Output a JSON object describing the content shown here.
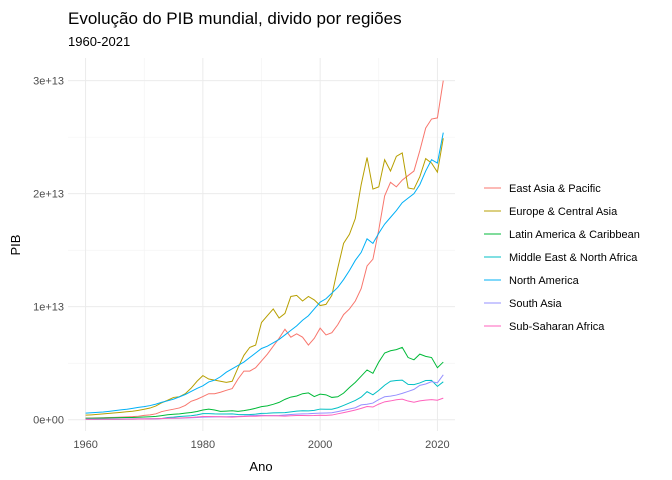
{
  "chart_data": {
    "type": "line",
    "title": "Evolução do PIB mundial, divido por regiões",
    "subtitle": "1960-2021",
    "xlabel": "Ano",
    "ylabel": "PIB",
    "xlim": [
      1957,
      2023
    ],
    "ylim": [
      -1000000000000.0,
      32000000000000.0
    ],
    "xticks": [
      1960,
      1980,
      2000,
      2020
    ],
    "xtick_labels": [
      "1960",
      "1980",
      "2000",
      "2020"
    ],
    "yticks": [
      0,
      10000000000000.0,
      20000000000000.0,
      30000000000000.0
    ],
    "ytick_labels": [
      "0e+00",
      "1e+13",
      "2e+13",
      "3e+13"
    ],
    "grid": true,
    "legend_position": "right",
    "x": [
      1960,
      1961,
      1962,
      1963,
      1964,
      1965,
      1966,
      1967,
      1968,
      1969,
      1970,
      1971,
      1972,
      1973,
      1974,
      1975,
      1976,
      1977,
      1978,
      1979,
      1980,
      1981,
      1982,
      1983,
      1984,
      1985,
      1986,
      1987,
      1988,
      1989,
      1990,
      1991,
      1992,
      1993,
      1994,
      1995,
      1996,
      1997,
      1998,
      1999,
      2000,
      2001,
      2002,
      2003,
      2004,
      2005,
      2006,
      2007,
      2008,
      2009,
      2010,
      2011,
      2012,
      2013,
      2014,
      2015,
      2016,
      2017,
      2018,
      2019,
      2020,
      2021
    ],
    "series": [
      {
        "name": "East Asia & Pacific",
        "color": "#F8766D",
        "values": [
          150000000000.0,
          150000000000.0,
          160000000000.0,
          170000000000.0,
          190000000000.0,
          210000000000.0,
          230000000000.0,
          250000000000.0,
          270000000000.0,
          310000000000.0,
          380000000000.0,
          430000000000.0,
          520000000000.0,
          720000000000.0,
          830000000000.0,
          930000000000.0,
          1040000000000.0,
          1260000000000.0,
          1630000000000.0,
          1810000000000.0,
          2050000000000.0,
          2300000000000.0,
          2300000000000.0,
          2430000000000.0,
          2600000000000.0,
          2750000000000.0,
          3600000000000.0,
          4300000000000.0,
          4300000000000.0,
          4600000000000.0,
          5200000000000.0,
          5800000000000.0,
          6500000000000.0,
          7200000000000.0,
          8000000000000.0,
          7300000000000.0,
          7600000000000.0,
          7300000000000.0,
          6600000000000.0,
          7200000000000.0,
          8100000000000.0,
          7500000000000.0,
          7700000000000.0,
          8400000000000.0,
          9300000000000.0,
          9800000000000.0,
          10500000000000.0,
          11600000000000.0,
          13600000000000.0,
          14200000000000.0,
          16800000000000.0,
          19800000000000.0,
          21000000000000.0,
          20600000000000.0,
          21200000000000.0,
          21600000000000.0,
          22000000000000.0,
          23800000000000.0,
          25800000000000.0,
          26600000000000.0,
          26700000000000.0,
          30000000000000.0
        ]
      },
      {
        "name": "Europe & Central Asia",
        "color": "#B79F00",
        "values": [
          400000000000.0,
          430000000000.0,
          470000000000.0,
          510000000000.0,
          560000000000.0,
          600000000000.0,
          650000000000.0,
          700000000000.0,
          750000000000.0,
          830000000000.0,
          920000000000.0,
          1030000000000.0,
          1220000000000.0,
          1500000000000.0,
          1720000000000.0,
          1970000000000.0,
          2030000000000.0,
          2300000000000.0,
          2790000000000.0,
          3400000000000.0,
          3900000000000.0,
          3600000000000.0,
          3500000000000.0,
          3400000000000.0,
          3300000000000.0,
          3400000000000.0,
          4600000000000.0,
          5700000000000.0,
          6400000000000.0,
          6600000000000.0,
          8600000000000.0,
          9200000000000.0,
          9800000000000.0,
          9000000000000.0,
          9400000000000.0,
          10900000000000.0,
          11000000000000.0,
          10500000000000.0,
          10900000000000.0,
          10600000000000.0,
          10100000000000.0,
          10200000000000.0,
          11000000000000.0,
          13400000000000.0,
          15600000000000.0,
          16400000000000.0,
          17800000000000.0,
          20800000000000.0,
          23200000000000.0,
          20400000000000.0,
          20600000000000.0,
          23000000000000.0,
          22000000000000.0,
          23300000000000.0,
          23600000000000.0,
          20500000000000.0,
          20400000000000.0,
          21500000000000.0,
          23100000000000.0,
          22700000000000.0,
          21900000000000.0,
          24900000000000.0
        ]
      },
      {
        "name": "Latin America & Caribbean",
        "color": "#00BA38",
        "values": [
          130000000000.0,
          130000000000.0,
          140000000000.0,
          150000000000.0,
          160000000000.0,
          170000000000.0,
          180000000000.0,
          190000000000.0,
          200000000000.0,
          220000000000.0,
          240000000000.0,
          260000000000.0,
          290000000000.0,
          360000000000.0,
          440000000000.0,
          480000000000.0,
          520000000000.0,
          580000000000.0,
          640000000000.0,
          730000000000.0,
          860000000000.0,
          930000000000.0,
          860000000000.0,
          740000000000.0,
          760000000000.0,
          790000000000.0,
          740000000000.0,
          800000000000.0,
          890000000000.0,
          1010000000000.0,
          1160000000000.0,
          1220000000000.0,
          1360000000000.0,
          1530000000000.0,
          1800000000000.0,
          2000000000000.0,
          2100000000000.0,
          2300000000000.0,
          2370000000000.0,
          2050000000000.0,
          2260000000000.0,
          2200000000000.0,
          1970000000000.0,
          2030000000000.0,
          2350000000000.0,
          2850000000000.0,
          3300000000000.0,
          3850000000000.0,
          4400000000000.0,
          4100000000000.0,
          5100000000000.0,
          5900000000000.0,
          6100000000000.0,
          6200000000000.0,
          6400000000000.0,
          5500000000000.0,
          5300000000000.0,
          5800000000000.0,
          5600000000000.0,
          5500000000000.0,
          4600000000000.0,
          5100000000000.0
        ]
      },
      {
        "name": "Middle East & North Africa",
        "color": "#00BFC4",
        "values": [
          30000000000.0,
          31000000000.0,
          33000000000.0,
          35000000000.0,
          38000000000.0,
          41000000000.0,
          45000000000.0,
          49000000000.0,
          54000000000.0,
          58000000000.0,
          63000000000.0,
          73000000000.0,
          86000000000.0,
          110000000000.0,
          200000000000.0,
          230000000000.0,
          280000000000.0,
          320000000000.0,
          350000000000.0,
          430000000000.0,
          540000000000.0,
          540000000000.0,
          510000000000.0,
          500000000000.0,
          500000000000.0,
          520000000000.0,
          460000000000.0,
          450000000000.0,
          460000000000.0,
          490000000000.0,
          560000000000.0,
          570000000000.0,
          600000000000.0,
          610000000000.0,
          630000000000.0,
          690000000000.0,
          760000000000.0,
          790000000000.0,
          780000000000.0,
          830000000000.0,
          940000000000.0,
          920000000000.0,
          930000000000.0,
          1060000000000.0,
          1260000000000.0,
          1480000000000.0,
          1700000000000.0,
          2000000000000.0,
          2480000000000.0,
          2200000000000.0,
          2590000000000.0,
          3050000000000.0,
          3400000000000.0,
          3470000000000.0,
          3500000000000.0,
          3120000000000.0,
          3100000000000.0,
          3250000000000.0,
          3470000000000.0,
          3480000000000.0,
          2950000000000.0,
          3350000000000.0
        ]
      },
      {
        "name": "North America",
        "color": "#00B0F6",
        "values": [
          580000000000.0,
          610000000000.0,
          650000000000.0,
          680000000000.0,
          740000000000.0,
          800000000000.0,
          870000000000.0,
          920000000000.0,
          1000000000000.0,
          1090000000000.0,
          1160000000000.0,
          1250000000000.0,
          1380000000000.0,
          1540000000000.0,
          1670000000000.0,
          1820000000000.0,
          2020000000000.0,
          2230000000000.0,
          2500000000000.0,
          2770000000000.0,
          3000000000000.0,
          3340000000000.0,
          3500000000000.0,
          3800000000000.0,
          4200000000000.0,
          4500000000000.0,
          4800000000000.0,
          5100000000000.0,
          5500000000000.0,
          5900000000000.0,
          6300000000000.0,
          6500000000000.0,
          6800000000000.0,
          7100000000000.0,
          7500000000000.0,
          7900000000000.0,
          8300000000000.0,
          8800000000000.0,
          9200000000000.0,
          9800000000000.0,
          10400000000000.0,
          10700000000000.0,
          11200000000000.0,
          11700000000000.0,
          12400000000000.0,
          13200000000000.0,
          14100000000000.0,
          14800000000000.0,
          16000000000000.0,
          15600000000000.0,
          16500000000000.0,
          17300000000000.0,
          17900000000000.0,
          18500000000000.0,
          19200000000000.0,
          19600000000000.0,
          20000000000000.0,
          20800000000000.0,
          22000000000000.0,
          23000000000000.0,
          22700000000000.0,
          25400000000000.0
        ]
      },
      {
        "name": "South Asia",
        "color": "#9590FF",
        "values": [
          50000000000.0,
          54000000000.0,
          57000000000.0,
          61000000000.0,
          67000000000.0,
          71000000000.0,
          63000000000.0,
          69000000000.0,
          73000000000.0,
          79000000000.0,
          84000000000.0,
          88000000000.0,
          88000000000.0,
          98000000000.0,
          123000000000.0,
          132000000000.0,
          129000000000.0,
          146000000000.0,
          168000000000.0,
          189000000000.0,
          224000000000.0,
          242000000000.0,
          250000000000.0,
          260000000000.0,
          264000000000.0,
          287000000000.0,
          298000000000.0,
          320000000000.0,
          360000000000.0,
          368000000000.0,
          390000000000.0,
          356000000000.0,
          360000000000.0,
          370000000000.0,
          417000000000.0,
          463000000000.0,
          497000000000.0,
          517000000000.0,
          527000000000.0,
          556000000000.0,
          583000000000.0,
          597000000000.0,
          620000000000.0,
          716000000000.0,
          822000000000.0,
          945000000000.0,
          1060000000000.0,
          1310000000000.0,
          1370000000000.0,
          1470000000000.0,
          1780000000000.0,
          2030000000000.0,
          2090000000000.0,
          2180000000000.0,
          2330000000000.0,
          2500000000000.0,
          2680000000000.0,
          3040000000000.0,
          3160000000000.0,
          3370000000000.0,
          3260000000000.0,
          3970000000000.0
        ]
      },
      {
        "name": "Sub-Saharan Africa",
        "color": "#FF62BC",
        "values": [
          30000000000.0,
          32000000000.0,
          34000000000.0,
          37000000000.0,
          40000000000.0,
          44000000000.0,
          47000000000.0,
          49000000000.0,
          53000000000.0,
          60000000000.0,
          65000000000.0,
          71000000000.0,
          80000000000.0,
          102000000000.0,
          128000000000.0,
          143000000000.0,
          154000000000.0,
          175000000000.0,
          200000000000.0,
          233000000000.0,
          280000000000.0,
          286000000000.0,
          272000000000.0,
          259000000000.0,
          241000000000.0,
          230000000000.0,
          258000000000.0,
          288000000000.0,
          300000000000.0,
          310000000000.0,
          338000000000.0,
          350000000000.0,
          346000000000.0,
          336000000000.0,
          313000000000.0,
          352000000000.0,
          366000000000.0,
          375000000000.0,
          362000000000.0,
          366000000000.0,
          388000000000.0,
          383000000000.0,
          410000000000.0,
          520000000000.0,
          630000000000.0,
          740000000000.0,
          860000000000.0,
          1000000000000.0,
          1170000000000.0,
          1120000000000.0,
          1380000000000.0,
          1580000000000.0,
          1660000000000.0,
          1760000000000.0,
          1820000000000.0,
          1650000000000.0,
          1550000000000.0,
          1660000000000.0,
          1730000000000.0,
          1780000000000.0,
          1720000000000.0,
          1910000000000.0
        ]
      }
    ]
  }
}
